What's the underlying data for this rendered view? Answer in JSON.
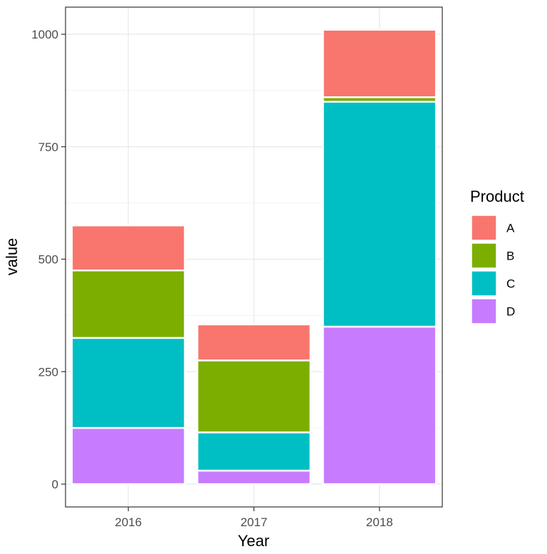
{
  "chart_data": {
    "type": "bar",
    "stacked": true,
    "categories": [
      "2016",
      "2017",
      "2018"
    ],
    "series": [
      {
        "name": "A",
        "color": "#F8766D",
        "values": [
          100,
          80,
          150
        ]
      },
      {
        "name": "B",
        "color": "#7CAE00",
        "values": [
          150,
          160,
          10
        ]
      },
      {
        "name": "C",
        "color": "#00BFC4",
        "values": [
          200,
          85,
          500
        ]
      },
      {
        "name": "D",
        "color": "#C77CFF",
        "values": [
          125,
          30,
          350
        ]
      }
    ],
    "stack_order_bottom_to_top": [
      "D",
      "C",
      "B",
      "A"
    ],
    "xlabel": "Year",
    "ylabel": "value",
    "ylim": [
      0,
      1050
    ],
    "yticks": [
      0,
      250,
      500,
      750,
      1000
    ],
    "yticks_labels": [
      "0",
      "250",
      "500",
      "750",
      "1000"
    ],
    "grid": true,
    "theme": "bw",
    "legend": {
      "title": "Product",
      "position": "right",
      "entries": [
        "A",
        "B",
        "C",
        "D"
      ]
    }
  }
}
